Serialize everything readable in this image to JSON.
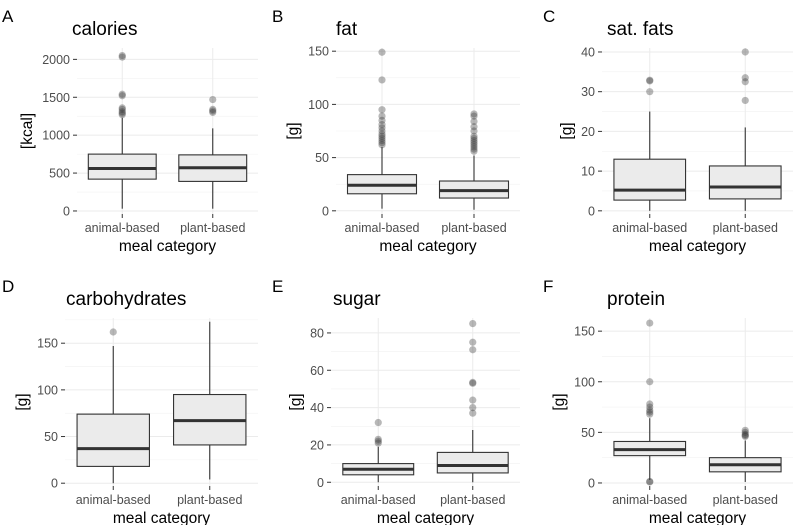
{
  "chart_data": [
    {
      "id": "calories",
      "tag": "A",
      "type": "boxplot",
      "title": "calories",
      "ylabel": "[kcal]",
      "xlabel": "meal category",
      "ylim": [
        -40,
        2150
      ],
      "yticks": [
        0,
        500,
        1000,
        1500,
        2000
      ],
      "categories": [
        {
          "label": "animal-based",
          "min": 30,
          "q1": 420,
          "median": 560,
          "q3": 750,
          "max": 1230,
          "outliers": [
            1270,
            1290,
            1310,
            1340,
            1360,
            1520,
            1540,
            2030,
            2050
          ]
        },
        {
          "label": "plant-based",
          "min": 30,
          "q1": 390,
          "median": 570,
          "q3": 740,
          "max": 1090,
          "outliers": [
            1300,
            1320,
            1340,
            1470
          ]
        }
      ]
    },
    {
      "id": "fat",
      "tag": "B",
      "type": "boxplot",
      "title": "fat",
      "ylabel": "[g]",
      "xlabel": "meal category",
      "ylim": [
        -3,
        153
      ],
      "yticks": [
        0,
        50,
        100,
        150
      ],
      "categories": [
        {
          "label": "animal-based",
          "min": 2,
          "q1": 16,
          "median": 24,
          "q3": 34,
          "max": 60,
          "outliers": [
            62,
            64,
            66,
            68,
            70,
            72,
            75,
            78,
            81,
            85,
            89,
            95,
            123,
            149
          ]
        },
        {
          "label": "plant-based",
          "min": 1,
          "q1": 12,
          "median": 19,
          "q3": 28,
          "max": 52,
          "outliers": [
            56,
            58,
            60,
            62,
            64,
            66,
            68,
            70,
            75,
            79,
            84,
            89,
            91
          ]
        }
      ]
    },
    {
      "id": "sat-fats",
      "tag": "C",
      "type": "boxplot",
      "title": "sat. fats",
      "ylabel": "[g]",
      "xlabel": "meal category",
      "ylim": [
        -0.8,
        41
      ],
      "yticks": [
        0,
        10,
        20,
        30,
        40
      ],
      "categories": [
        {
          "label": "animal-based",
          "min": 0,
          "q1": 2.7,
          "median": 5.2,
          "q3": 13,
          "max": 25,
          "outliers": [
            30,
            32.7,
            32.9
          ]
        },
        {
          "label": "plant-based",
          "min": 0,
          "q1": 3,
          "median": 6,
          "q3": 11.3,
          "max": 21,
          "outliers": [
            27.8,
            32.5,
            33.5,
            40
          ]
        }
      ]
    },
    {
      "id": "carbohydrates",
      "tag": "D",
      "type": "boxplot",
      "title": "carbohydrates",
      "ylabel": "[g]",
      "xlabel": "meal category",
      "ylim": [
        -3,
        177
      ],
      "yticks": [
        0,
        50,
        100,
        150
      ],
      "categories": [
        {
          "label": "animal-based",
          "min": 0,
          "q1": 18,
          "median": 37,
          "q3": 74,
          "max": 147,
          "outliers": [
            162
          ]
        },
        {
          "label": "plant-based",
          "min": 4,
          "q1": 41,
          "median": 67,
          "q3": 95,
          "max": 173,
          "outliers": []
        }
      ]
    },
    {
      "id": "sugar",
      "tag": "E",
      "type": "boxplot",
      "title": "sugar",
      "ylabel": "[g]",
      "xlabel": "meal category",
      "ylim": [
        -2,
        88
      ],
      "yticks": [
        0,
        20,
        40,
        60,
        80
      ],
      "categories": [
        {
          "label": "animal-based",
          "min": 0,
          "q1": 4,
          "median": 7,
          "q3": 10,
          "max": 19,
          "outliers": [
            21,
            22,
            23,
            32
          ]
        },
        {
          "label": "plant-based",
          "min": 0,
          "q1": 5,
          "median": 9,
          "q3": 16,
          "max": 28,
          "outliers": [
            37,
            40,
            44,
            53,
            53.5,
            71,
            75,
            85
          ]
        }
      ]
    },
    {
      "id": "protein",
      "tag": "F",
      "type": "boxplot",
      "title": "protein",
      "ylabel": "[g]",
      "xlabel": "meal category",
      "ylim": [
        -3,
        163
      ],
      "yticks": [
        0,
        50,
        100,
        150
      ],
      "categories": [
        {
          "label": "animal-based",
          "min": 3,
          "q1": 27,
          "median": 33,
          "q3": 41,
          "max": 64,
          "outliers": [
            1,
            1.5,
            68,
            70,
            72,
            75,
            78,
            100,
            158
          ]
        },
        {
          "label": "plant-based",
          "min": 1,
          "q1": 11,
          "median": 18,
          "q3": 25,
          "max": 42,
          "outliers": [
            46,
            47,
            48,
            50,
            52
          ]
        }
      ]
    }
  ]
}
